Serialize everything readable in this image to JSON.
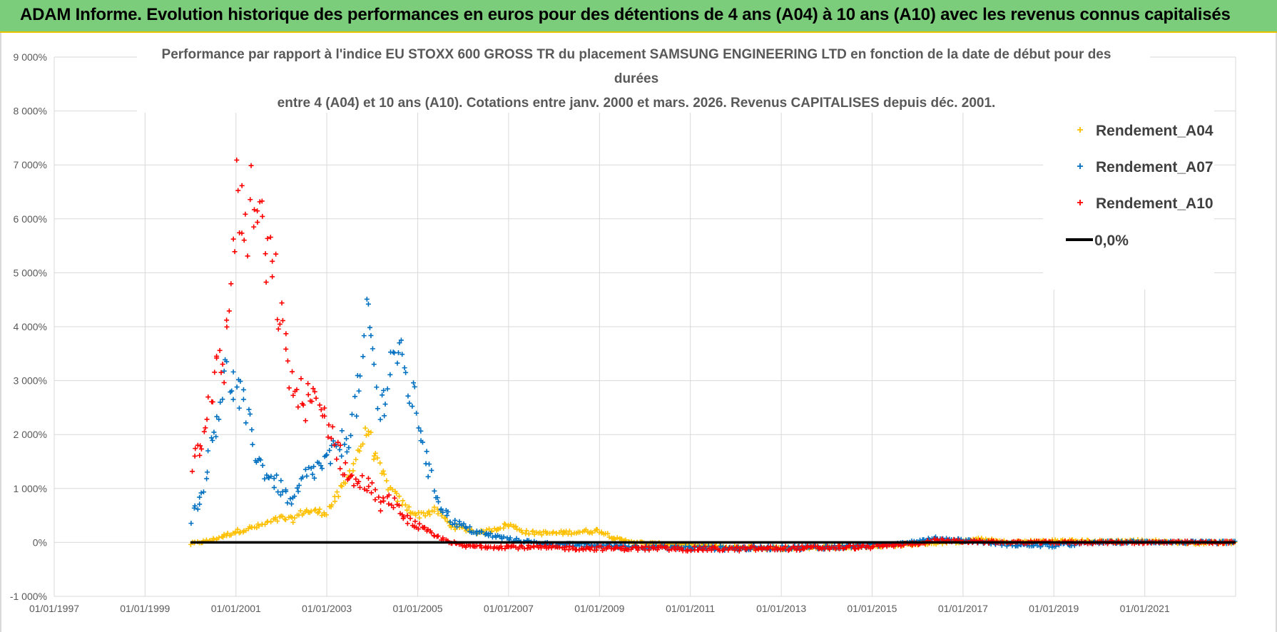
{
  "header": {
    "title": "ADAM Informe. Evolution historique des performances en euros pour des détentions de 4 ans (A04) à 10 ans (A10) avec les revenus connus capitalisés"
  },
  "chart_data": {
    "type": "scatter",
    "title_lines": [
      "Performance par rapport à l'indice EU STOXX 600 GROSS TR  du placement SAMSUNG ENGINEERING LTD en fonction de la date de début pour des",
      "durées",
      "entre 4 (A04) et 10 ans (A10).  Cotations entre janv. 2000 et mars. 2026.  Revenus CAPITALISES  depuis déc. 2001."
    ],
    "xlabel": "",
    "ylabel": "",
    "y_range": [
      -1000,
      9000
    ],
    "y_ticks": [
      -1000,
      0,
      1000,
      2000,
      3000,
      4000,
      5000,
      6000,
      7000,
      8000,
      9000
    ],
    "y_tick_labels": [
      "-1 000%",
      "0%",
      "1 000%",
      "2 000%",
      "3 000%",
      "4 000%",
      "5 000%",
      "6 000%",
      "7 000%",
      "8 000%",
      "9 000%"
    ],
    "x_range": [
      "1997-01-01",
      "2023-01-01"
    ],
    "x_ticks": [
      "1997-01-01",
      "1999-01-01",
      "2001-01-01",
      "2003-01-01",
      "2005-01-01",
      "2007-01-01",
      "2009-01-01",
      "2011-01-01",
      "2013-01-01",
      "2015-01-01",
      "2017-01-01",
      "2019-01-01",
      "2021-01-01"
    ],
    "x_tick_labels": [
      "01/01/1997",
      "01/01/1999",
      "01/01/2001",
      "01/01/2003",
      "01/01/2005",
      "01/01/2007",
      "01/01/2009",
      "01/01/2011",
      "01/01/2013",
      "01/01/2015",
      "01/01/2017",
      "01/01/2019",
      "01/01/2021"
    ],
    "grid": true,
    "legend_position": "top-right",
    "series": [
      {
        "name": "Rendement_A04",
        "color": "#ffc000",
        "marker": "plus",
        "spread": 0.07,
        "points": [
          [
            "2000-01-01",
            -30
          ],
          [
            "2000-07-01",
            50
          ],
          [
            "2001-01-01",
            200
          ],
          [
            "2001-07-01",
            300
          ],
          [
            "2002-01-01",
            450
          ],
          [
            "2002-04-01",
            420
          ],
          [
            "2002-07-01",
            580
          ],
          [
            "2003-01-01",
            560
          ],
          [
            "2003-06-01",
            1100
          ],
          [
            "2003-10-01",
            1800
          ],
          [
            "2003-12-01",
            2100
          ],
          [
            "2004-02-01",
            1500
          ],
          [
            "2004-06-01",
            950
          ],
          [
            "2004-10-01",
            650
          ],
          [
            "2005-01-01",
            500
          ],
          [
            "2005-06-01",
            600
          ],
          [
            "2005-10-01",
            300
          ],
          [
            "2006-06-01",
            180
          ],
          [
            "2007-01-01",
            330
          ],
          [
            "2007-06-01",
            180
          ],
          [
            "2008-01-01",
            170
          ],
          [
            "2008-06-01",
            190
          ],
          [
            "2009-01-01",
            220
          ],
          [
            "2009-06-01",
            50
          ],
          [
            "2010-01-01",
            -20
          ],
          [
            "2011-01-01",
            -60
          ],
          [
            "2012-01-01",
            -90
          ],
          [
            "2013-01-01",
            -110
          ],
          [
            "2014-01-01",
            -90
          ],
          [
            "2015-01-01",
            -70
          ],
          [
            "2016-01-01",
            -30
          ],
          [
            "2017-01-01",
            20
          ],
          [
            "2017-06-01",
            60
          ],
          [
            "2018-01-01",
            0
          ],
          [
            "2019-01-01",
            30
          ],
          [
            "2020-01-01",
            20
          ],
          [
            "2021-01-01",
            30
          ],
          [
            "2022-01-01",
            -10
          ],
          [
            "2023-01-01",
            0
          ]
        ]
      },
      {
        "name": "Rendement_A07",
        "color": "#0070c0",
        "marker": "plus",
        "spread": 0.13,
        "points": [
          [
            "2000-01-01",
            400
          ],
          [
            "2000-04-01",
            900
          ],
          [
            "2000-07-01",
            2000
          ],
          [
            "2000-10-01",
            3100
          ],
          [
            "2001-01-01",
            2900
          ],
          [
            "2001-04-01",
            2300
          ],
          [
            "2001-07-01",
            1500
          ],
          [
            "2001-10-01",
            1200
          ],
          [
            "2002-01-01",
            1000
          ],
          [
            "2002-04-01",
            700
          ],
          [
            "2002-07-01",
            1200
          ],
          [
            "2003-01-01",
            1500
          ],
          [
            "2003-07-01",
            2000
          ],
          [
            "2003-10-01",
            3000
          ],
          [
            "2003-12-01",
            4200
          ],
          [
            "2004-03-01",
            2300
          ],
          [
            "2004-07-01",
            3700
          ],
          [
            "2004-10-01",
            3000
          ],
          [
            "2005-01-01",
            2400
          ],
          [
            "2005-04-01",
            1300
          ],
          [
            "2005-07-01",
            700
          ],
          [
            "2005-10-01",
            400
          ],
          [
            "2006-04-01",
            200
          ],
          [
            "2007-01-01",
            60
          ],
          [
            "2008-01-01",
            -40
          ],
          [
            "2009-01-01",
            -60
          ],
          [
            "2010-01-01",
            -80
          ],
          [
            "2011-01-01",
            -100
          ],
          [
            "2012-01-01",
            -110
          ],
          [
            "2013-01-01",
            -100
          ],
          [
            "2014-01-01",
            -90
          ],
          [
            "2015-01-01",
            -60
          ],
          [
            "2016-01-01",
            20
          ],
          [
            "2016-06-01",
            70
          ],
          [
            "2017-01-01",
            40
          ],
          [
            "2018-01-01",
            -40
          ],
          [
            "2019-01-01",
            -60
          ],
          [
            "2020-01-01",
            0
          ],
          [
            "2021-01-01",
            10
          ],
          [
            "2022-01-01",
            0
          ],
          [
            "2023-01-01",
            0
          ]
        ]
      },
      {
        "name": "Rendement_A10",
        "color": "#ff0000",
        "marker": "plus",
        "spread": 0.14,
        "points": [
          [
            "2000-01-01",
            1300
          ],
          [
            "2000-04-01",
            2000
          ],
          [
            "2000-07-01",
            3000
          ],
          [
            "2000-10-01",
            3300
          ],
          [
            "2000-11-01",
            4200
          ],
          [
            "2001-01-01",
            6500
          ],
          [
            "2001-03-01",
            5800
          ],
          [
            "2001-06-01",
            6300
          ],
          [
            "2001-09-01",
            5300
          ],
          [
            "2001-12-01",
            4600
          ],
          [
            "2002-02-01",
            3500
          ],
          [
            "2002-05-01",
            2700
          ],
          [
            "2002-09-01",
            2600
          ],
          [
            "2003-01-01",
            2300
          ],
          [
            "2003-05-01",
            1500
          ],
          [
            "2003-08-01",
            1100
          ],
          [
            "2003-12-01",
            1100
          ],
          [
            "2004-03-01",
            700
          ],
          [
            "2004-06-01",
            800
          ],
          [
            "2004-09-01",
            500
          ],
          [
            "2005-01-01",
            300
          ],
          [
            "2005-06-01",
            100
          ],
          [
            "2006-01-01",
            -70
          ],
          [
            "2007-01-01",
            -80
          ],
          [
            "2008-01-01",
            -100
          ],
          [
            "2009-01-01",
            -110
          ],
          [
            "2010-01-01",
            -110
          ],
          [
            "2011-01-01",
            -120
          ],
          [
            "2012-01-01",
            -120
          ],
          [
            "2013-01-01",
            -110
          ],
          [
            "2014-01-01",
            -100
          ],
          [
            "2015-01-01",
            -80
          ],
          [
            "2016-01-01",
            -20
          ],
          [
            "2016-06-01",
            40
          ],
          [
            "2017-01-01",
            20
          ],
          [
            "2018-01-01",
            0
          ],
          [
            "2019-01-01",
            0
          ],
          [
            "2020-01-01",
            0
          ],
          [
            "2021-01-01",
            0
          ],
          [
            "2022-01-01",
            0
          ],
          [
            "2023-01-01",
            0
          ]
        ]
      },
      {
        "name": "0,0%",
        "color": "#000000",
        "marker": "line",
        "points": [
          [
            "2000-01-01",
            0
          ],
          [
            "2023-01-01",
            0
          ]
        ]
      }
    ]
  }
}
